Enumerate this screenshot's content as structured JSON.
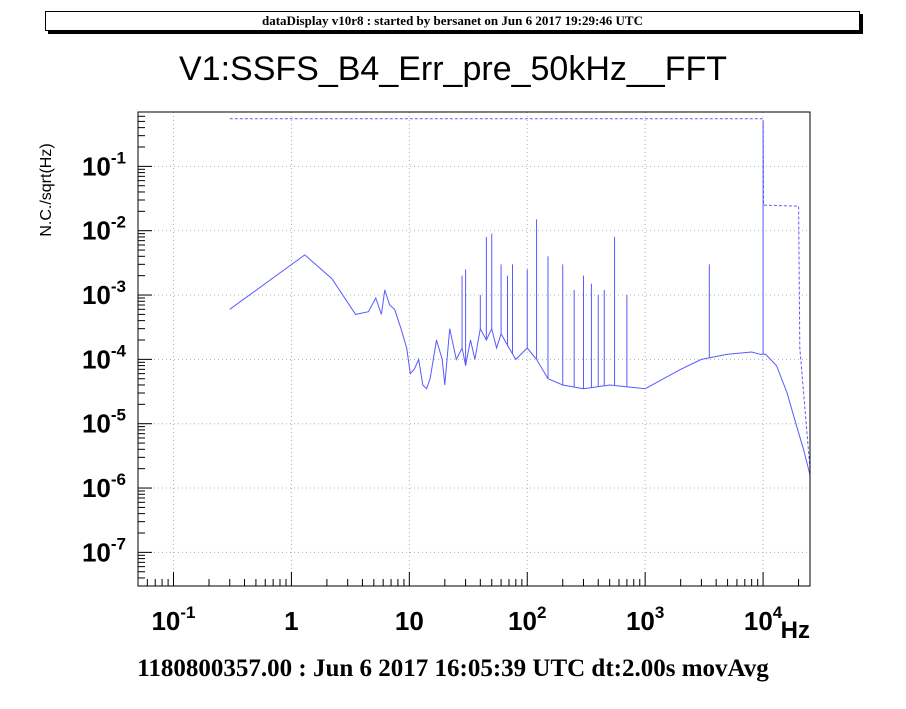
{
  "header": {
    "text": "dataDisplay v10r8 : started by bersanet on Jun  6 2017 19:29:46 UTC"
  },
  "footer": {
    "text": "1180800357.00 : Jun  6 2017 16:05:39 UTC dt:2.00s movAvg"
  },
  "colors": {
    "trace": "#5a5aff",
    "grid": "#b0b0b0",
    "axis": "#000000"
  },
  "chart_data": {
    "type": "line",
    "title": "V1:SSFS_B4_Err_pre_50kHz__FFT",
    "ylabel": "N.C./sqrt(Hz)",
    "xlabel": "Hz",
    "x_scale": "log",
    "y_scale": "log",
    "xlim": [
      0.05,
      25000
    ],
    "ylim": [
      3e-08,
      0.7
    ],
    "grid": true,
    "x_ticks": [
      {
        "value": 0.1,
        "base": "10",
        "exp": "-1"
      },
      {
        "value": 1,
        "base": "1",
        "exp": ""
      },
      {
        "value": 10,
        "base": "10",
        "exp": ""
      },
      {
        "value": 100,
        "base": "10",
        "exp": "2"
      },
      {
        "value": 1000,
        "base": "10",
        "exp": "3"
      },
      {
        "value": 10000,
        "base": "10",
        "exp": "4"
      }
    ],
    "y_ticks": [
      {
        "value": 1e-07,
        "base": "10",
        "exp": "-7"
      },
      {
        "value": 1e-06,
        "base": "10",
        "exp": "-6"
      },
      {
        "value": 1e-05,
        "base": "10",
        "exp": "-5"
      },
      {
        "value": 0.0001,
        "base": "10",
        "exp": "-4"
      },
      {
        "value": 0.001,
        "base": "10",
        "exp": "-3"
      },
      {
        "value": 0.01,
        "base": "10",
        "exp": "-2"
      },
      {
        "value": 0.1,
        "base": "10",
        "exp": "-1"
      }
    ],
    "series": [
      {
        "style": "solid",
        "x": [
          0.3,
          1.3,
          2.2,
          3.5,
          4.5,
          5.2,
          5.8,
          6.2,
          6.8,
          7.5,
          8.5,
          9.5,
          10.2,
          11,
          12,
          13,
          14,
          15,
          17,
          19,
          20,
          22,
          25,
          28,
          30,
          33,
          36,
          40,
          45,
          50,
          55,
          60,
          70,
          80,
          100,
          120,
          150,
          200,
          300,
          500,
          1000,
          2000,
          3000,
          5000,
          8000,
          9500,
          10500,
          13000,
          16000,
          19000,
          22000,
          25000
        ],
        "y": [
          0.0006,
          0.0042,
          0.0018,
          0.0005,
          0.00055,
          0.0009,
          0.0005,
          0.0012,
          0.0007,
          0.0006,
          0.0003,
          0.00015,
          6e-05,
          7e-05,
          0.0001,
          4e-05,
          3.5e-05,
          5e-05,
          0.0002,
          0.0001,
          4e-05,
          0.0003,
          0.0001,
          0.00015,
          8e-05,
          0.0002,
          0.0001,
          0.0003,
          0.0002,
          0.0003,
          0.00015,
          0.00025,
          0.00015,
          0.0001,
          0.00015,
          0.0001,
          5e-05,
          4e-05,
          3.5e-05,
          4e-05,
          3.5e-05,
          7e-05,
          0.0001,
          0.00012,
          0.00013,
          0.00012,
          0.00012,
          8e-05,
          3e-05,
          1e-05,
          4e-06,
          1.6e-06
        ]
      },
      {
        "style": "dashed",
        "x": [
          0.3,
          10000,
          10100,
          20000,
          20500,
          25000
        ],
        "y": [
          0.55,
          0.55,
          0.025,
          0.024,
          0.00015,
          2e-06
        ]
      }
    ],
    "spikes": {
      "x": [
        28,
        30,
        40,
        45,
        50,
        60,
        68,
        75,
        100,
        120,
        150,
        200,
        250,
        300,
        350,
        400,
        450,
        550,
        700,
        3500,
        10000
      ],
      "y": [
        0.002,
        0.0025,
        0.001,
        0.008,
        0.009,
        0.003,
        0.002,
        0.003,
        0.0025,
        0.015,
        0.004,
        0.003,
        0.0012,
        0.002,
        0.0015,
        0.001,
        0.0012,
        0.008,
        0.001,
        0.003,
        0.5
      ]
    }
  }
}
